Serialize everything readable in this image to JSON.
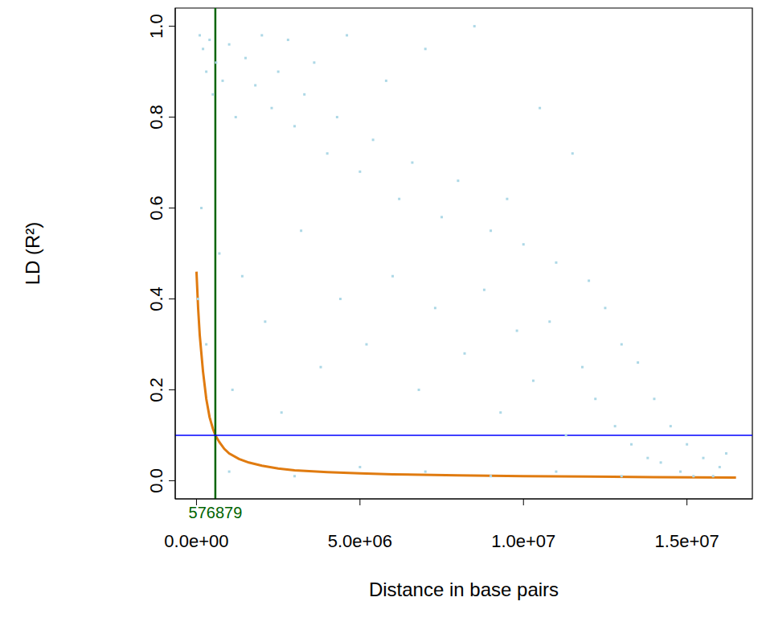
{
  "chart_data": {
    "type": "scatter",
    "x_label": "Distance in base pairs",
    "y_label": "LD (R²)",
    "xlim": [
      -650000,
      17000000
    ],
    "xticks": [
      {
        "value": 0,
        "label": "0.0e+00"
      },
      {
        "value": 5000000,
        "label": "5.0e+06"
      },
      {
        "value": 10000000,
        "label": "1.0e+07"
      },
      {
        "value": 15000000,
        "label": "1.5e+07"
      }
    ],
    "ylim": [
      -0.04,
      1.04
    ],
    "yticks": [
      {
        "value": 0,
        "label": "0.0"
      },
      {
        "value": 0.2,
        "label": "0.2"
      },
      {
        "value": 0.4,
        "label": "0.4"
      },
      {
        "value": 0.6,
        "label": "0.6"
      },
      {
        "value": 0.8,
        "label": "0.8"
      },
      {
        "value": 1,
        "label": "1.0"
      }
    ],
    "series": [
      {
        "type": "scatter",
        "marker": "square",
        "color": "#add8e6",
        "x": [
          100000,
          200000,
          300000,
          400000,
          500000,
          600000,
          800000,
          1000000,
          1200000,
          1500000,
          1800000,
          2000000,
          2300000,
          2500000,
          2800000,
          3000000,
          3300000,
          3600000,
          4000000,
          4300000,
          4600000,
          5000000,
          5400000,
          5800000,
          6200000,
          6600000,
          7000000,
          7500000,
          8000000,
          8500000,
          9000000,
          9500000,
          10000000,
          10500000,
          11000000,
          11500000,
          12000000,
          12500000,
          13000000,
          13500000,
          14000000,
          14500000,
          15000000,
          15500000,
          16000000,
          16200000,
          50000,
          150000,
          300000,
          700000,
          1100000,
          1400000,
          2100000,
          2600000,
          3200000,
          3800000,
          4400000,
          5200000,
          6000000,
          6800000,
          7300000,
          8200000,
          8800000,
          9300000,
          9800000,
          10300000,
          10800000,
          11300000,
          11800000,
          12200000,
          12800000,
          13300000,
          13800000,
          14200000,
          14800000,
          15200000,
          15800000,
          1000000,
          3000000,
          5000000,
          7000000,
          9000000,
          11000000,
          13000000
        ],
        "values": [
          0.98,
          0.95,
          0.9,
          0.97,
          0.85,
          0.92,
          0.88,
          0.96,
          0.8,
          0.93,
          0.87,
          0.98,
          0.82,
          0.9,
          0.97,
          0.78,
          0.85,
          0.92,
          0.72,
          0.8,
          0.98,
          0.68,
          0.75,
          0.88,
          0.62,
          0.7,
          0.95,
          0.58,
          0.66,
          1.0,
          0.55,
          0.62,
          0.52,
          0.82,
          0.48,
          0.72,
          0.44,
          0.38,
          0.3,
          0.26,
          0.18,
          0.12,
          0.08,
          0.05,
          0.03,
          0.06,
          0.4,
          0.6,
          0.3,
          0.5,
          0.2,
          0.45,
          0.35,
          0.15,
          0.55,
          0.25,
          0.4,
          0.3,
          0.45,
          0.2,
          0.38,
          0.28,
          0.42,
          0.15,
          0.33,
          0.22,
          0.35,
          0.1,
          0.25,
          0.18,
          0.12,
          0.08,
          0.05,
          0.04,
          0.02,
          0.01,
          0.01,
          0.02,
          0.01,
          0.03,
          0.02,
          0.01,
          0.02,
          0.01
        ]
      },
      {
        "type": "line",
        "line_style": "solid",
        "color": "#e07b10",
        "x": [
          0,
          50000,
          100000,
          200000,
          300000,
          400000,
          500000,
          576879,
          700000,
          850000,
          1000000,
          1300000,
          1600000,
          2000000,
          2500000,
          3000000,
          4000000,
          5000000,
          6000000,
          8000000,
          10000000,
          12000000,
          14000000,
          16500000
        ],
        "values": [
          0.46,
          0.38,
          0.32,
          0.24,
          0.18,
          0.14,
          0.115,
          0.1,
          0.085,
          0.07,
          0.06,
          0.048,
          0.04,
          0.033,
          0.027,
          0.023,
          0.019,
          0.016,
          0.014,
          0.012,
          0.01,
          0.009,
          0.008,
          0.007
        ]
      }
    ],
    "reference_lines": [
      {
        "axis": "x",
        "value": 576879,
        "label": "576879",
        "color": "#006400"
      },
      {
        "axis": "y",
        "value": 0.1,
        "color": "#0000ff"
      }
    ]
  }
}
